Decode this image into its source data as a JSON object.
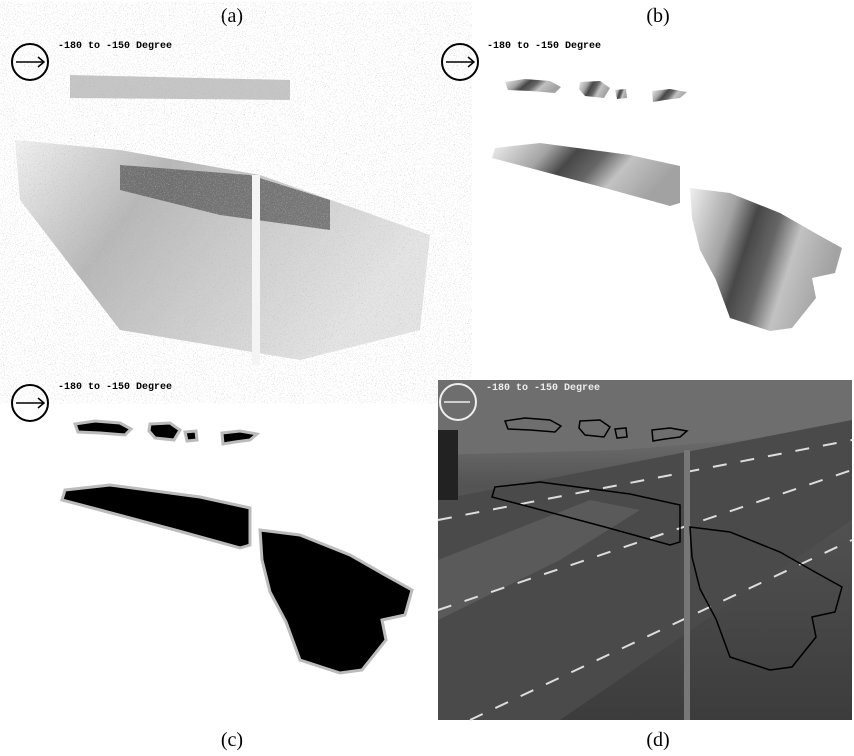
{
  "panels": [
    {
      "label": "(a)",
      "overlay": "-180 to -150 Degree"
    },
    {
      "label": "(b)",
      "overlay": "-180 to -150 Degree"
    },
    {
      "label": "(c)",
      "overlay": "-180 to -150 Degree"
    },
    {
      "label": "(d)",
      "overlay": "-180 to -150 Degree"
    }
  ]
}
